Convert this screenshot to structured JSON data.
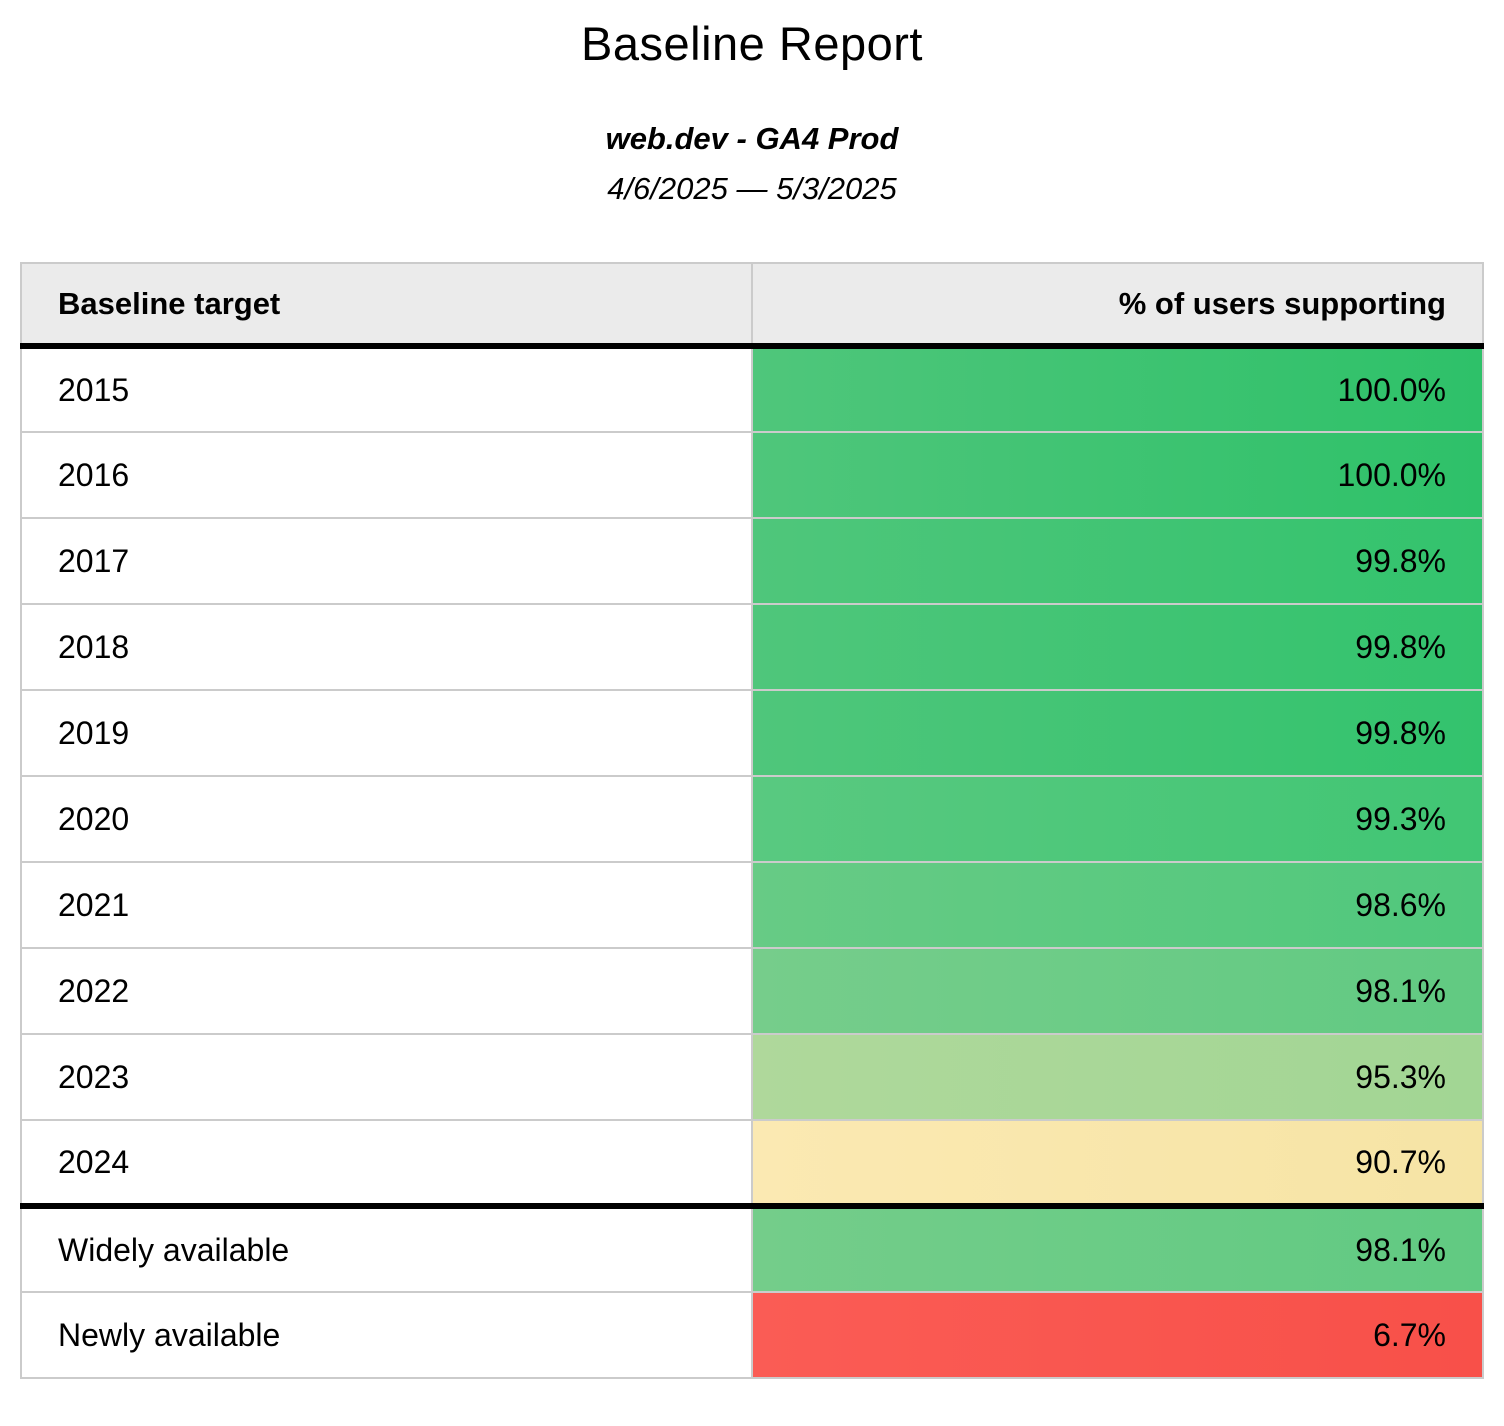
{
  "header": {
    "title": "Baseline Report",
    "subtitle": "web.dev - GA4 Prod",
    "date_range": "4/6/2025 — 5/3/2025"
  },
  "theme": {
    "header_bg": "#ebebeb",
    "grid_border": "#cbcbcb",
    "group_separator": "#000000",
    "text_color": "#000000"
  },
  "table": {
    "columns": [
      "Baseline target",
      "% of users supporting"
    ],
    "rows": [
      {
        "label": "2015",
        "value": "100.0%",
        "color_from": "#4fc67b",
        "color_to": "#2ec169"
      },
      {
        "label": "2016",
        "value": "100.0%",
        "color_from": "#4fc67b",
        "color_to": "#2ec169"
      },
      {
        "label": "2017",
        "value": "99.8%",
        "color_from": "#4fc67b",
        "color_to": "#33c36d"
      },
      {
        "label": "2018",
        "value": "99.8%",
        "color_from": "#4fc67b",
        "color_to": "#33c36d"
      },
      {
        "label": "2019",
        "value": "99.8%",
        "color_from": "#4fc67b",
        "color_to": "#33c36d"
      },
      {
        "label": "2020",
        "value": "99.3%",
        "color_from": "#59c980",
        "color_to": "#41c674"
      },
      {
        "label": "2021",
        "value": "98.6%",
        "color_from": "#67cb85",
        "color_to": "#50c87c"
      },
      {
        "label": "2022",
        "value": "98.1%",
        "color_from": "#76cd8b",
        "color_to": "#61ca82"
      },
      {
        "label": "2023",
        "value": "95.3%",
        "color_from": "#afd89b",
        "color_to": "#a2d694"
      },
      {
        "label": "2024",
        "value": "90.7%",
        "color_from": "#fbe9b2",
        "color_to": "#f6e4a5"
      },
      {
        "label": "Widely available",
        "value": "98.1%",
        "color_from": "#74cd8a",
        "color_to": "#61ca82"
      },
      {
        "label": "Newly available",
        "value": "6.7%",
        "color_from": "#fa5c55",
        "color_to": "#f85049"
      }
    ]
  },
  "chart_data": {
    "type": "table",
    "title": "Baseline Report",
    "subtitle": "web.dev - GA4 Prod",
    "date_range": "4/6/2025 — 5/3/2025",
    "columns": [
      "Baseline target",
      "% of users supporting"
    ],
    "categories": [
      "2015",
      "2016",
      "2017",
      "2018",
      "2019",
      "2020",
      "2021",
      "2022",
      "2023",
      "2024",
      "Widely available",
      "Newly available"
    ],
    "values": [
      100.0,
      100.0,
      99.8,
      99.8,
      99.8,
      99.3,
      98.6,
      98.1,
      95.3,
      90.7,
      98.1,
      6.7
    ],
    "value_unit": "%",
    "layout_hints": {
      "value_column_coloring": "heatmap green (high) to yellow (~90) to red (low)",
      "group_separator_after_row": "2024",
      "value_alignment": "right",
      "label_alignment": "left"
    }
  }
}
